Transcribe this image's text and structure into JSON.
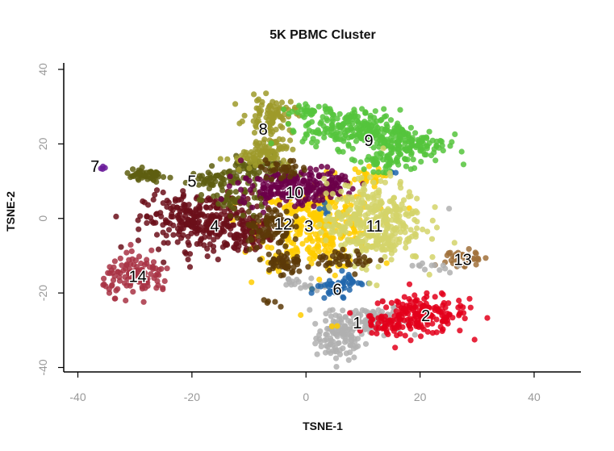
{
  "chart_data": {
    "type": "scatter",
    "title": "5K PBMC Cluster",
    "xlabel": "TSNE-1",
    "ylabel": "TSNE-2",
    "xlim": [
      -42,
      48
    ],
    "ylim": [
      -41,
      41
    ],
    "xticks": [
      -40,
      -20,
      0,
      20,
      40
    ],
    "yticks": [
      -40,
      -20,
      0,
      20,
      40
    ],
    "grid": false,
    "legend": "none",
    "clusters": [
      {
        "label": "1",
        "color": "#b0b0b0",
        "label_pos": [
          9,
          -28
        ],
        "blobs": [
          [
            6,
            -32,
            2.5,
            3.5,
            110
          ],
          [
            11,
            -27,
            3.5,
            2.5,
            90
          ],
          [
            1,
            -18,
            1.5,
            1,
            10
          ],
          [
            -3,
            -17,
            1.5,
            1,
            8
          ]
        ]
      },
      {
        "label": "2",
        "color": "#e3001b",
        "label_pos": [
          21,
          -26
        ],
        "blobs": [
          [
            20,
            -26,
            5,
            3,
            180
          ],
          [
            14,
            -29,
            2,
            1.5,
            30
          ]
        ]
      },
      {
        "label": "3",
        "color": "#ffcc00",
        "label_pos": [
          0.5,
          -2
        ],
        "blobs": [
          [
            2,
            -2,
            6,
            7,
            320
          ],
          [
            10,
            11,
            2,
            1.5,
            25
          ],
          [
            5,
            -29,
            0.6,
            0.6,
            2
          ]
        ]
      },
      {
        "label": "4",
        "color": "#6b0f1a",
        "label_pos": [
          -16,
          -2
        ],
        "blobs": [
          [
            -18,
            -1,
            6,
            4.5,
            300
          ],
          [
            -10,
            -4,
            2.5,
            2.5,
            50
          ]
        ]
      },
      {
        "label": "5",
        "color": "#5e5e10",
        "label_pos": [
          -20,
          10
        ],
        "blobs": [
          [
            -16,
            10,
            2.5,
            2,
            50
          ],
          [
            -9,
            13,
            3.5,
            2,
            60
          ],
          [
            -12,
            5,
            3,
            2,
            40
          ]
        ]
      },
      {
        "label": "6",
        "color": "#2166ac",
        "label_pos": [
          5.5,
          -19
        ],
        "blobs": [
          [
            5,
            -19,
            1.8,
            2,
            40
          ],
          [
            8,
            -17,
            1.2,
            1.2,
            15
          ],
          [
            3,
            2,
            1,
            1,
            5
          ],
          [
            15,
            12,
            0.6,
            0.6,
            3
          ]
        ]
      },
      {
        "label": "7",
        "color": "#6a1b9a",
        "label_pos": [
          -37,
          14
        ],
        "blobs": [
          [
            -35.5,
            13.5,
            0.4,
            0.4,
            4
          ]
        ]
      },
      {
        "label": "8",
        "color": "#9e9a2a",
        "label_pos": [
          -7.5,
          24
        ],
        "blobs": [
          [
            -6,
            28,
            2.5,
            2.5,
            80
          ],
          [
            -6,
            20,
            2,
            3,
            60
          ],
          [
            -10,
            16,
            2.5,
            2,
            40
          ]
        ]
      },
      {
        "label": "9",
        "color": "#55c43c",
        "label_pos": [
          11,
          21
        ],
        "blobs": [
          [
            8,
            24,
            5,
            3,
            200
          ],
          [
            18,
            20,
            4,
            3,
            150
          ],
          [
            1,
            29,
            2.5,
            0.8,
            30
          ],
          [
            13,
            15,
            4,
            2,
            40
          ]
        ]
      },
      {
        "label": "10",
        "color": "#6b0049",
        "label_pos": [
          -2,
          7
        ],
        "blobs": [
          [
            -3,
            8,
            5,
            2.5,
            180
          ],
          [
            4,
            10,
            2.5,
            2,
            40
          ]
        ]
      },
      {
        "label": "11",
        "color": "#d4d46a",
        "label_pos": [
          12,
          -2
        ],
        "blobs": [
          [
            12,
            -1,
            5,
            6.5,
            350
          ]
        ]
      },
      {
        "label": "12",
        "color": "#5c3a08",
        "label_pos": [
          -4,
          -1.5
        ],
        "blobs": [
          [
            -7,
            -2,
            2.5,
            3.5,
            80
          ],
          [
            -4,
            -12,
            2,
            2,
            50
          ],
          [
            7,
            -11,
            3,
            1.5,
            40
          ],
          [
            -4,
            13,
            2.5,
            1.5,
            30
          ],
          [
            -6,
            -23,
            0.8,
            0.6,
            5
          ]
        ]
      },
      {
        "label": "13",
        "color": "#a0703a",
        "label_pos": [
          27.5,
          -11
        ],
        "blobs": [
          [
            27.5,
            -11,
            2,
            2,
            35
          ]
        ]
      },
      {
        "label": "14",
        "color": "#a83244",
        "label_pos": [
          -29.5,
          -15.5
        ],
        "blobs": [
          [
            -29.5,
            -15.5,
            3.5,
            3,
            120
          ]
        ]
      },
      {
        "label": "",
        "color": "#5e5e10",
        "label_pos": [
          0,
          0
        ],
        "blobs": [
          [
            -28,
            11.5,
            2.2,
            1,
            50
          ]
        ]
      },
      {
        "label": "",
        "color": "#b0b0b0",
        "label_pos": [
          0,
          0
        ],
        "blobs": [
          [
            22,
            -13,
            2.5,
            1.2,
            12
          ],
          [
            25,
            2.5,
            0.3,
            0.3,
            1
          ]
        ]
      }
    ]
  }
}
